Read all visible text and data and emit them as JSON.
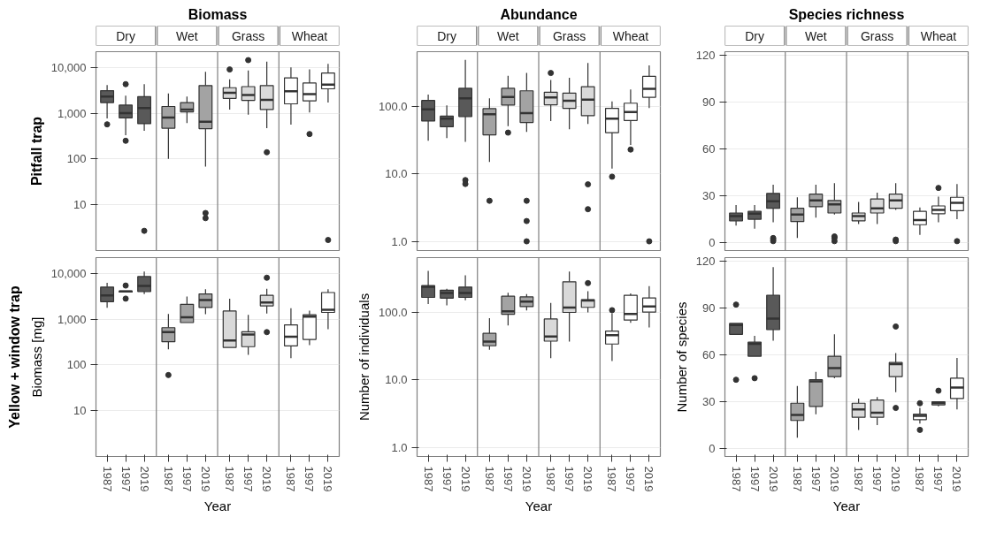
{
  "chart_data": [
    {
      "type": "box",
      "title": "Biomass",
      "annotations": [
        "Pitfall trap",
        "Dry",
        "Wet",
        "Grass",
        "Wheat"
      ],
      "categories": [
        "1987",
        "1997",
        "2019",
        "1987",
        "1997",
        "2019",
        "1987",
        "1997",
        "2019",
        "1987",
        "1997",
        "2019"
      ],
      "colors": [
        "#595959",
        "#595959",
        "#595959",
        "#a3a3a3",
        "#a3a3a3",
        "#a3a3a3",
        "#d9d9d9",
        "#d9d9d9",
        "#d9d9d9",
        "#ffffff",
        "#ffffff",
        "#ffffff"
      ],
      "log": true,
      "grid": "y",
      "tick_labels": "y",
      "ylim": [
        1,
        22000
      ],
      "yticks": [
        {
          "value": 10,
          "label": "10"
        },
        {
          "value": 100,
          "label": "100"
        },
        {
          "value": 1000,
          "label": "1,000"
        },
        {
          "value": 10000,
          "label": "10,000"
        }
      ],
      "boxes": [
        {
          "low": 770,
          "q1": 1700,
          "median": 2300,
          "q3": 3100,
          "high": 4100,
          "outliers": [
            570
          ]
        },
        {
          "low": 330,
          "q1": 790,
          "median": 1000,
          "q3": 1500,
          "high": 2400,
          "outliers": [
            4300,
            250
          ]
        },
        {
          "low": 410,
          "q1": 590,
          "median": 1300,
          "q3": 2300,
          "high": 4300,
          "outliers": [
            2.7
          ]
        },
        {
          "low": 100,
          "q1": 470,
          "median": 800,
          "q3": 1400,
          "high": 2700
        },
        {
          "low": 610,
          "q1": 1070,
          "median": 1200,
          "q3": 1700,
          "high": 2300
        },
        {
          "low": 68,
          "q1": 460,
          "median": 650,
          "q3": 4000,
          "high": 8000,
          "outliers": [
            6.6,
            5.1
          ]
        },
        {
          "low": 1200,
          "q1": 2100,
          "median": 2800,
          "q3": 3600,
          "high": 5500,
          "outliers": [
            9000
          ]
        },
        {
          "low": 930,
          "q1": 1900,
          "median": 2500,
          "q3": 3800,
          "high": 8600,
          "outliers": [
            14400
          ]
        },
        {
          "low": 470,
          "q1": 1200,
          "median": 1950,
          "q3": 4000,
          "high": 13400,
          "outliers": [
            140
          ]
        },
        {
          "low": 560,
          "q1": 1600,
          "median": 3000,
          "q3": 5900,
          "high": 10000
        },
        {
          "low": 1040,
          "q1": 1850,
          "median": 2600,
          "q3": 4550,
          "high": 9000,
          "outliers": [
            350
          ]
        },
        {
          "low": 1700,
          "q1": 3400,
          "median": 4200,
          "q3": 7500,
          "high": 12000,
          "outliers": [
            1.7
          ]
        }
      ]
    },
    {
      "type": "box",
      "title": "Abundance",
      "annotations": [
        "Dry",
        "Wet",
        "Grass",
        "Wheat"
      ],
      "categories": [
        "1987",
        "1997",
        "2019",
        "1987",
        "1997",
        "2019",
        "1987",
        "1997",
        "2019",
        "1987",
        "1997",
        "2019"
      ],
      "colors": [
        "#595959",
        "#595959",
        "#595959",
        "#a3a3a3",
        "#a3a3a3",
        "#a3a3a3",
        "#d9d9d9",
        "#d9d9d9",
        "#d9d9d9",
        "#ffffff",
        "#ffffff",
        "#ffffff"
      ],
      "log": true,
      "grid": "y",
      "tick_labels": "y",
      "ylim": [
        0.73,
        650
      ],
      "yticks": [
        {
          "value": 1,
          "label": "1.0"
        },
        {
          "value": 10,
          "label": "10.0"
        },
        {
          "value": 100,
          "label": "100.0"
        }
      ],
      "boxes": [
        {
          "low": 31,
          "q1": 61,
          "median": 91,
          "q3": 123,
          "high": 150
        },
        {
          "low": 34,
          "q1": 50,
          "median": 66,
          "q3": 72,
          "high": 104
        },
        {
          "low": 30,
          "q1": 71,
          "median": 132,
          "q3": 186,
          "high": 490,
          "outliers": [
            8.1,
            7.1
          ]
        },
        {
          "low": 15,
          "q1": 38,
          "median": 77,
          "q3": 93,
          "high": 132,
          "outliers": [
            4
          ]
        },
        {
          "low": 51,
          "q1": 105,
          "median": 138,
          "q3": 186,
          "high": 285,
          "outliers": [
            41
          ]
        },
        {
          "low": 42,
          "q1": 58,
          "median": 80,
          "q3": 171,
          "high": 314,
          "outliers": [
            4,
            2,
            1
          ]
        },
        {
          "low": 61,
          "q1": 106,
          "median": 136,
          "q3": 163,
          "high": 247,
          "outliers": [
            314
          ]
        },
        {
          "low": 46,
          "q1": 94,
          "median": 122,
          "q3": 158,
          "high": 267
        },
        {
          "low": 55,
          "q1": 73,
          "median": 126,
          "q3": 197,
          "high": 443,
          "outliers": [
            7,
            3
          ]
        },
        {
          "low": 12,
          "q1": 41,
          "median": 66,
          "q3": 94,
          "high": 119,
          "outliers": [
            9.1
          ]
        },
        {
          "low": 27,
          "q1": 62,
          "median": 83,
          "q3": 112,
          "high": 179,
          "outliers": [
            23
          ]
        },
        {
          "low": 95,
          "q1": 137,
          "median": 183,
          "q3": 280,
          "high": 406,
          "outliers": [
            1
          ]
        }
      ]
    },
    {
      "type": "box",
      "title": "Species richness",
      "annotations": [
        "Dry",
        "Wet",
        "Grass",
        "Wheat"
      ],
      "categories": [
        "1987",
        "1997",
        "2019",
        "1987",
        "1997",
        "2019",
        "1987",
        "1997",
        "2019",
        "1987",
        "1997",
        "2019"
      ],
      "colors": [
        "#595959",
        "#595959",
        "#595959",
        "#a3a3a3",
        "#a3a3a3",
        "#a3a3a3",
        "#d9d9d9",
        "#d9d9d9",
        "#d9d9d9",
        "#ffffff",
        "#ffffff",
        "#ffffff"
      ],
      "grid": "y",
      "tick_labels": "y",
      "ylim": [
        -5,
        122
      ],
      "yticks": [
        0,
        30,
        60,
        90,
        120
      ],
      "boxes": [
        {
          "low": 11,
          "q1": 14,
          "median": 17,
          "q3": 19,
          "high": 24
        },
        {
          "low": 9,
          "q1": 15,
          "median": 18.5,
          "q3": 20,
          "high": 24
        },
        {
          "low": 13,
          "q1": 22,
          "median": 26.5,
          "q3": 31.5,
          "high": 37,
          "outliers": [
            3,
            2,
            1
          ]
        },
        {
          "low": 3,
          "q1": 13.5,
          "median": 18,
          "q3": 22,
          "high": 29
        },
        {
          "low": 16,
          "q1": 23,
          "median": 27,
          "q3": 31,
          "high": 37
        },
        {
          "low": 18,
          "q1": 19,
          "median": 24.5,
          "q3": 27,
          "high": 38,
          "outliers": [
            4,
            3,
            1
          ]
        },
        {
          "low": 12,
          "q1": 14,
          "median": 17,
          "q3": 19,
          "high": 26
        },
        {
          "low": 12,
          "q1": 19,
          "median": 22,
          "q3": 28,
          "high": 32
        },
        {
          "low": 21,
          "q1": 22,
          "median": 27,
          "q3": 31,
          "high": 38,
          "outliers": [
            2,
            1
          ]
        },
        {
          "low": 5,
          "q1": 11.5,
          "median": 14.5,
          "q3": 20,
          "high": 22.5
        },
        {
          "low": 13,
          "q1": 18.5,
          "median": 21,
          "q3": 23.5,
          "high": 29.5,
          "outliers": [
            35
          ]
        },
        {
          "low": 15,
          "q1": 20.5,
          "median": 25.5,
          "q3": 29,
          "high": 37.5,
          "outliers": [
            1
          ]
        }
      ]
    },
    {
      "type": "box",
      "ylabel": "Biomass [mg]",
      "xlabel": "Year",
      "annotations": [
        "Yellow + window trap"
      ],
      "categories": [
        "1987",
        "1997",
        "2019",
        "1987",
        "1997",
        "2019",
        "1987",
        "1997",
        "2019",
        "1987",
        "1997",
        "2019"
      ],
      "colors": [
        "#595959",
        "#595959",
        "#595959",
        "#a3a3a3",
        "#a3a3a3",
        "#a3a3a3",
        "#d9d9d9",
        "#d9d9d9",
        "#d9d9d9",
        "#ffffff",
        "#ffffff",
        "#ffffff"
      ],
      "log": true,
      "grid": "y",
      "ylim": [
        1,
        22000
      ],
      "yticks": [
        {
          "value": 10,
          "label": "10"
        },
        {
          "value": 100,
          "label": "100"
        },
        {
          "value": 1000,
          "label": "1,000"
        },
        {
          "value": 10000,
          "label": "10,000"
        }
      ],
      "boxes": [
        {
          "low": 1770,
          "q1": 2400,
          "median": 3300,
          "q3": 5000,
          "high": 6200
        },
        {
          "low": 3900,
          "q1": 3900,
          "median": 4000,
          "q3": 4100,
          "high": 4100,
          "outliers": [
            5400,
            2800
          ]
        },
        {
          "low": 3500,
          "q1": 4000,
          "median": 5300,
          "q3": 8500,
          "high": 10900
        },
        {
          "low": 220,
          "q1": 320,
          "median": 520,
          "q3": 650,
          "high": 1300,
          "outliers": [
            60
          ]
        },
        {
          "low": 840,
          "q1": 840,
          "median": 1100,
          "q3": 2100,
          "high": 3100
        },
        {
          "low": 1280,
          "q1": 1790,
          "median": 2600,
          "q3": 3550,
          "high": 4500
        },
        {
          "low": 240,
          "q1": 240,
          "median": 340,
          "q3": 1500,
          "high": 2800
        },
        {
          "low": 165,
          "q1": 250,
          "median": 460,
          "q3": 530,
          "high": 1240
        },
        {
          "low": 1320,
          "q1": 1950,
          "median": 2300,
          "q3": 3300,
          "high": 4600,
          "outliers": [
            8000,
            520
          ]
        },
        {
          "low": 140,
          "q1": 260,
          "median": 410,
          "q3": 750,
          "high": 1720
        },
        {
          "low": 270,
          "q1": 360,
          "median": 1130,
          "q3": 1240,
          "high": 1530
        },
        {
          "low": 600,
          "q1": 1400,
          "median": 1600,
          "q3": 3800,
          "high": 4500
        }
      ]
    },
    {
      "type": "box",
      "ylabel": "Number of individuals",
      "xlabel": "Year",
      "categories": [
        "1987",
        "1997",
        "2019",
        "1987",
        "1997",
        "2019",
        "1987",
        "1997",
        "2019",
        "1987",
        "1997",
        "2019"
      ],
      "colors": [
        "#595959",
        "#595959",
        "#595959",
        "#a3a3a3",
        "#a3a3a3",
        "#a3a3a3",
        "#d9d9d9",
        "#d9d9d9",
        "#d9d9d9",
        "#ffffff",
        "#ffffff",
        "#ffffff"
      ],
      "log": true,
      "grid": "y",
      "ylim": [
        0.73,
        650
      ],
      "yticks": [
        {
          "value": 1,
          "label": "1.0"
        },
        {
          "value": 10,
          "label": "10.0"
        },
        {
          "value": 100,
          "label": "100.0"
        }
      ],
      "boxes": [
        {
          "low": 133,
          "q1": 167,
          "median": 240,
          "q3": 250,
          "high": 413
        },
        {
          "low": 127,
          "q1": 163,
          "median": 195,
          "q3": 214,
          "high": 225
        },
        {
          "low": 152,
          "q1": 167,
          "median": 195,
          "q3": 238,
          "high": 355
        },
        {
          "low": 28,
          "q1": 32,
          "median": 37,
          "q3": 49,
          "high": 82
        },
        {
          "low": 64,
          "q1": 94,
          "median": 104,
          "q3": 174,
          "high": 196
        },
        {
          "low": 107,
          "q1": 122,
          "median": 145,
          "q3": 170,
          "high": 187
        },
        {
          "low": 21,
          "q1": 37.5,
          "median": 44,
          "q3": 80,
          "high": 138
        },
        {
          "low": 37,
          "q1": 100,
          "median": 118,
          "q3": 285,
          "high": 404
        },
        {
          "low": 100,
          "q1": 119,
          "median": 150,
          "q3": 155,
          "high": 206,
          "outliers": [
            272
          ]
        },
        {
          "low": 19,
          "q1": 34,
          "median": 46,
          "q3": 53,
          "high": 97,
          "outliers": [
            108
          ]
        },
        {
          "low": 70,
          "q1": 77,
          "median": 95,
          "q3": 180,
          "high": 191
        },
        {
          "low": 60,
          "q1": 101,
          "median": 123,
          "q3": 164,
          "high": 245
        }
      ]
    },
    {
      "type": "box",
      "ylabel": "Number of species",
      "xlabel": "Year",
      "categories": [
        "1987",
        "1997",
        "2019",
        "1987",
        "1997",
        "2019",
        "1987",
        "1997",
        "2019",
        "1987",
        "1997",
        "2019"
      ],
      "colors": [
        "#595959",
        "#595959",
        "#595959",
        "#a3a3a3",
        "#a3a3a3",
        "#a3a3a3",
        "#d9d9d9",
        "#d9d9d9",
        "#d9d9d9",
        "#ffffff",
        "#ffffff",
        "#ffffff"
      ],
      "grid": "y",
      "ylim": [
        -5,
        122
      ],
      "yticks": [
        0,
        30,
        60,
        90,
        120
      ],
      "boxes": [
        {
          "low": 73,
          "q1": 73,
          "median": 79,
          "q3": 80,
          "high": 80,
          "outliers": [
            92,
            44
          ]
        },
        {
          "low": 59,
          "q1": 59,
          "median": 67,
          "q3": 68,
          "high": 72,
          "outliers": [
            45
          ]
        },
        {
          "low": 69,
          "q1": 76,
          "median": 83,
          "q3": 98,
          "high": 116
        },
        {
          "low": 7,
          "q1": 18,
          "median": 21.5,
          "q3": 29,
          "high": 40
        },
        {
          "low": 22,
          "q1": 27,
          "median": 43,
          "q3": 44,
          "high": 49
        },
        {
          "low": 45,
          "q1": 46,
          "median": 51.5,
          "q3": 59,
          "high": 73
        },
        {
          "low": 12,
          "q1": 20,
          "median": 25,
          "q3": 29,
          "high": 32
        },
        {
          "low": 15,
          "q1": 20,
          "median": 23,
          "q3": 31,
          "high": 33
        },
        {
          "low": 36,
          "q1": 46,
          "median": 54,
          "q3": 55,
          "high": 61,
          "outliers": [
            78,
            26
          ]
        },
        {
          "low": 16,
          "q1": 18.5,
          "median": 21,
          "q3": 22,
          "high": 26,
          "outliers": [
            29,
            12
          ]
        },
        {
          "low": 27,
          "q1": 28,
          "median": 29,
          "q3": 30,
          "high": 30,
          "outliers": [
            37
          ]
        },
        {
          "low": 25,
          "q1": 32,
          "median": 39,
          "q3": 45,
          "high": 58
        }
      ]
    }
  ]
}
